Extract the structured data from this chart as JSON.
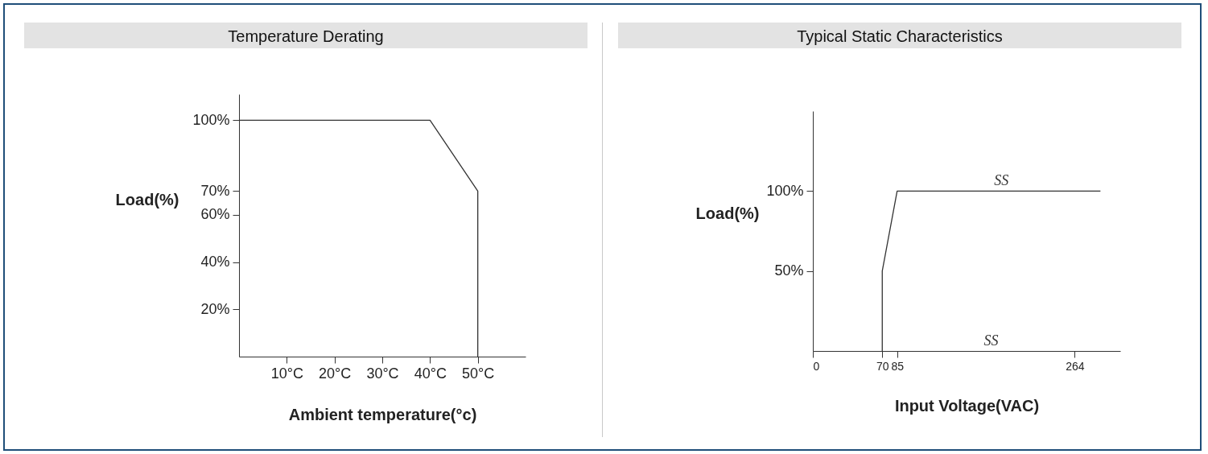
{
  "chart_data": [
    {
      "type": "line",
      "title": "Temperature Derating",
      "xlabel": "Ambient temperature(°c)",
      "ylabel": "Load(%)",
      "x": [
        0,
        40,
        50,
        50
      ],
      "values": [
        100,
        100,
        70,
        0
      ],
      "color": "#333333",
      "xlim": [
        0,
        60
      ],
      "ylim": [
        0,
        111
      ],
      "xticks": [
        {
          "value": 10,
          "label": "10°C"
        },
        {
          "value": 20,
          "label": "20°C"
        },
        {
          "value": 30,
          "label": "30°C"
        },
        {
          "value": 40,
          "label": "40°C"
        },
        {
          "value": 50,
          "label": "50°C"
        }
      ],
      "yticks": [
        {
          "value": 20,
          "label": "20%"
        },
        {
          "value": 40,
          "label": "40%"
        },
        {
          "value": 60,
          "label": "60%"
        },
        {
          "value": 70,
          "label": "70%"
        },
        {
          "value": 100,
          "label": "100%"
        }
      ],
      "grid": false
    },
    {
      "type": "line",
      "title": "Typical Static Characteristics",
      "xlabel": "Input Voltage(VAC)",
      "ylabel": "Load(%)",
      "x": [
        70,
        70,
        85,
        290
      ],
      "values": [
        0,
        50,
        100,
        100
      ],
      "color": "#333333",
      "xlim": [
        0,
        310
      ],
      "ylim": [
        0,
        150
      ],
      "xticks": [
        0,
        70,
        85,
        264
      ],
      "yticks": [
        {
          "value": 50,
          "label": "50%"
        },
        {
          "value": 100,
          "label": "100%"
        }
      ],
      "grid": false,
      "annotations": [
        {
          "text": "SS",
          "x": 190,
          "y": 100
        },
        "SS"
      ]
    }
  ]
}
